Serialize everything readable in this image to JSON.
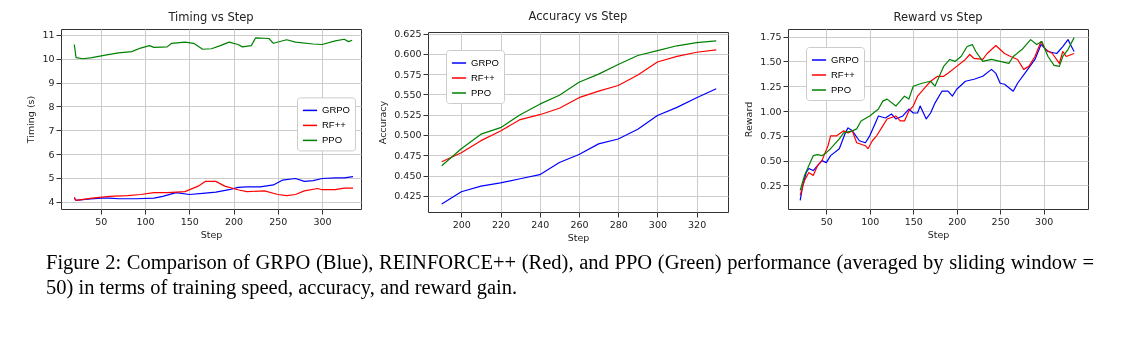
{
  "chart_data": [
    {
      "type": "line",
      "title": "Timing vs Step",
      "xlabel": "Step",
      "ylabel": "Timing (s)",
      "xlim": [
        5,
        344
      ],
      "ylim": [
        3.69,
        11.25
      ],
      "xticks": [
        50,
        100,
        150,
        200,
        250,
        300
      ],
      "yticks": [
        4,
        5,
        6,
        7,
        8,
        9,
        10,
        11
      ],
      "grid": true,
      "legend": "right",
      "annotations": [
        "Figure 2: Comparison of GRPO (Blue), REINFORCE++ (Red), and PPO (Green) performance (averaged by sliding window = 50) in terms of training speed, accuracy, and reward gain."
      ],
      "series": [
        {
          "name": "GRPO",
          "color": "#0000ff",
          "x": [
            20,
            22,
            35,
            50,
            60,
            70,
            90,
            110,
            120,
            135,
            150,
            165,
            180,
            195,
            205,
            215,
            230,
            245,
            255,
            270,
            280,
            290,
            300,
            315,
            325,
            335
          ],
          "values": [
            4.15,
            4.05,
            4.1,
            4.15,
            4.15,
            4.12,
            4.12,
            4.15,
            4.22,
            4.38,
            4.3,
            4.35,
            4.4,
            4.5,
            4.6,
            4.62,
            4.62,
            4.7,
            4.9,
            4.97,
            4.85,
            4.88,
            4.97,
            5.0,
            5.0,
            5.05
          ]
        },
        {
          "name": "RF++",
          "color": "#ff0000",
          "x": [
            20,
            22,
            40,
            60,
            80,
            95,
            110,
            125,
            145,
            160,
            168,
            180,
            190,
            205,
            215,
            235,
            250,
            260,
            270,
            280,
            295,
            300,
            315,
            325,
            335
          ],
          "values": [
            4.18,
            4.05,
            4.15,
            4.22,
            4.25,
            4.3,
            4.38,
            4.38,
            4.42,
            4.65,
            4.85,
            4.85,
            4.65,
            4.5,
            4.42,
            4.45,
            4.3,
            4.25,
            4.3,
            4.45,
            4.55,
            4.5,
            4.5,
            4.57,
            4.57
          ]
        },
        {
          "name": "PPO",
          "color": "#008000",
          "x": [
            20,
            22,
            30,
            40,
            55,
            70,
            85,
            95,
            105,
            110,
            125,
            130,
            145,
            155,
            165,
            175,
            185,
            195,
            205,
            210,
            220,
            225,
            240,
            245,
            260,
            270,
            290,
            300,
            315,
            325,
            330,
            334
          ],
          "values": [
            10.6,
            10.05,
            10.0,
            10.05,
            10.15,
            10.25,
            10.3,
            10.45,
            10.55,
            10.48,
            10.5,
            10.65,
            10.7,
            10.65,
            10.4,
            10.42,
            10.55,
            10.7,
            10.6,
            10.5,
            10.55,
            10.88,
            10.85,
            10.65,
            10.8,
            10.7,
            10.62,
            10.6,
            10.75,
            10.82,
            10.72,
            10.78
          ]
        }
      ]
    },
    {
      "type": "line",
      "title": "Accuracy vs Step",
      "xlabel": "Step",
      "ylabel": "Accuracy",
      "xlim": [
        183,
        336
      ],
      "ylim": [
        0.405,
        0.627
      ],
      "xticks": [
        200,
        220,
        240,
        260,
        280,
        300,
        320
      ],
      "yticks": [
        0.425,
        {
          "value": 0.45,
          "label": "0.450"
        },
        0.475,
        {
          "value": 0.5,
          "label": "0.500"
        },
        0.525,
        {
          "value": 0.55,
          "label": "0.550"
        },
        0.575,
        {
          "value": 0.6,
          "label": "0.600"
        },
        0.625
      ],
      "grid": true,
      "legend": "top left",
      "x": [
        190,
        200,
        210,
        220,
        230,
        240,
        250,
        260,
        270,
        280,
        290,
        300,
        310,
        320,
        330
      ],
      "series": [
        {
          "name": "GRPO",
          "color": "#0000ff",
          "values": [
            0.415,
            0.43,
            0.437,
            0.441,
            0.446,
            0.451,
            0.466,
            0.476,
            0.489,
            0.495,
            0.507,
            0.524,
            0.534,
            0.546,
            0.557
          ]
        },
        {
          "name": "RF++",
          "color": "#ff0000",
          "values": [
            0.467,
            0.478,
            0.493,
            0.505,
            0.519,
            0.525,
            0.533,
            0.546,
            0.554,
            0.561,
            0.574,
            0.59,
            0.597,
            0.602,
            0.605
          ]
        },
        {
          "name": "PPO",
          "color": "#008000",
          "values": [
            0.462,
            0.483,
            0.501,
            0.509,
            0.525,
            0.538,
            0.549,
            0.565,
            0.575,
            0.587,
            0.598,
            0.604,
            0.61,
            0.614,
            0.616
          ]
        }
      ]
    },
    {
      "type": "line",
      "title": "Reward vs Step",
      "xlabel": "Step",
      "ylabel": "Reward",
      "xlim": [
        6,
        351
      ],
      "ylim": [
        0.012,
        1.827
      ],
      "xticks": [
        50,
        100,
        150,
        200,
        250,
        300
      ],
      "yticks": [
        0.25,
        {
          "value": 0.5,
          "label": "0.50"
        },
        0.75,
        {
          "value": 1,
          "label": "1.00"
        },
        1.25,
        {
          "value": 1.5,
          "label": "1.50"
        },
        1.75
      ],
      "grid": true,
      "legend": "top left",
      "series": [
        {
          "name": "GRPO",
          "color": "#0000ff",
          "x": [
            20,
            23,
            27,
            30,
            35,
            40,
            45,
            50,
            55,
            65,
            72,
            75,
            80,
            88,
            95,
            100,
            105,
            110,
            118,
            125,
            130,
            138,
            145,
            150,
            155,
            158,
            165,
            170,
            175,
            183,
            190,
            195,
            200,
            210,
            220,
            230,
            240,
            245,
            250,
            255,
            265,
            270,
            280,
            290,
            297,
            305,
            315,
            322,
            328,
            332,
            335
          ],
          "values": [
            0.1,
            0.25,
            0.38,
            0.42,
            0.4,
            0.45,
            0.5,
            0.48,
            0.55,
            0.62,
            0.78,
            0.83,
            0.8,
            0.7,
            0.68,
            0.75,
            0.85,
            0.95,
            0.93,
            0.97,
            0.92,
            0.95,
            1.02,
            0.98,
            0.98,
            1.05,
            0.92,
            0.98,
            1.08,
            1.2,
            1.2,
            1.15,
            1.22,
            1.3,
            1.32,
            1.35,
            1.42,
            1.38,
            1.28,
            1.27,
            1.2,
            1.28,
            1.4,
            1.52,
            1.67,
            1.6,
            1.58,
            1.65,
            1.72,
            1.65,
            1.6
          ]
        },
        {
          "name": "RF++",
          "color": "#ff0000",
          "x": [
            20,
            25,
            30,
            35,
            40,
            45,
            52,
            55,
            62,
            70,
            75,
            80,
            85,
            95,
            98,
            103,
            108,
            115,
            120,
            130,
            135,
            140,
            145,
            150,
            155,
            165,
            170,
            178,
            185,
            190,
            200,
            210,
            215,
            220,
            230,
            235,
            245,
            250,
            255,
            262,
            270,
            277,
            283,
            290,
            297,
            302,
            310,
            318,
            322,
            326,
            335
          ],
          "values": [
            0.15,
            0.3,
            0.38,
            0.35,
            0.45,
            0.5,
            0.65,
            0.75,
            0.75,
            0.8,
            0.78,
            0.8,
            0.68,
            0.65,
            0.62,
            0.7,
            0.75,
            0.85,
            0.92,
            0.95,
            0.9,
            0.9,
            1.0,
            1.05,
            1.15,
            1.25,
            1.3,
            1.35,
            1.35,
            1.38,
            1.45,
            1.52,
            1.57,
            1.53,
            1.52,
            1.58,
            1.66,
            1.62,
            1.58,
            1.55,
            1.52,
            1.42,
            1.45,
            1.55,
            1.7,
            1.62,
            1.58,
            1.48,
            1.6,
            1.55,
            1.58
          ]
        },
        {
          "name": "PPO",
          "color": "#008000",
          "x": [
            20,
            25,
            30,
            35,
            40,
            45,
            50,
            55,
            65,
            70,
            80,
            85,
            90,
            100,
            110,
            115,
            120,
            130,
            140,
            145,
            150,
            160,
            170,
            175,
            180,
            185,
            192,
            198,
            205,
            212,
            218,
            222,
            230,
            240,
            250,
            260,
            265,
            275,
            285,
            292,
            298,
            305,
            312,
            318,
            322,
            328,
            335
          ],
          "values": [
            0.2,
            0.35,
            0.45,
            0.55,
            0.56,
            0.55,
            0.58,
            0.62,
            0.72,
            0.78,
            0.8,
            0.82,
            0.9,
            0.95,
            1.02,
            1.1,
            1.12,
            1.05,
            1.15,
            1.12,
            1.25,
            1.28,
            1.3,
            1.25,
            1.35,
            1.45,
            1.52,
            1.5,
            1.55,
            1.65,
            1.67,
            1.6,
            1.5,
            1.52,
            1.5,
            1.48,
            1.55,
            1.62,
            1.72,
            1.67,
            1.7,
            1.55,
            1.46,
            1.45,
            1.55,
            1.62,
            1.74
          ]
        }
      ]
    }
  ]
}
